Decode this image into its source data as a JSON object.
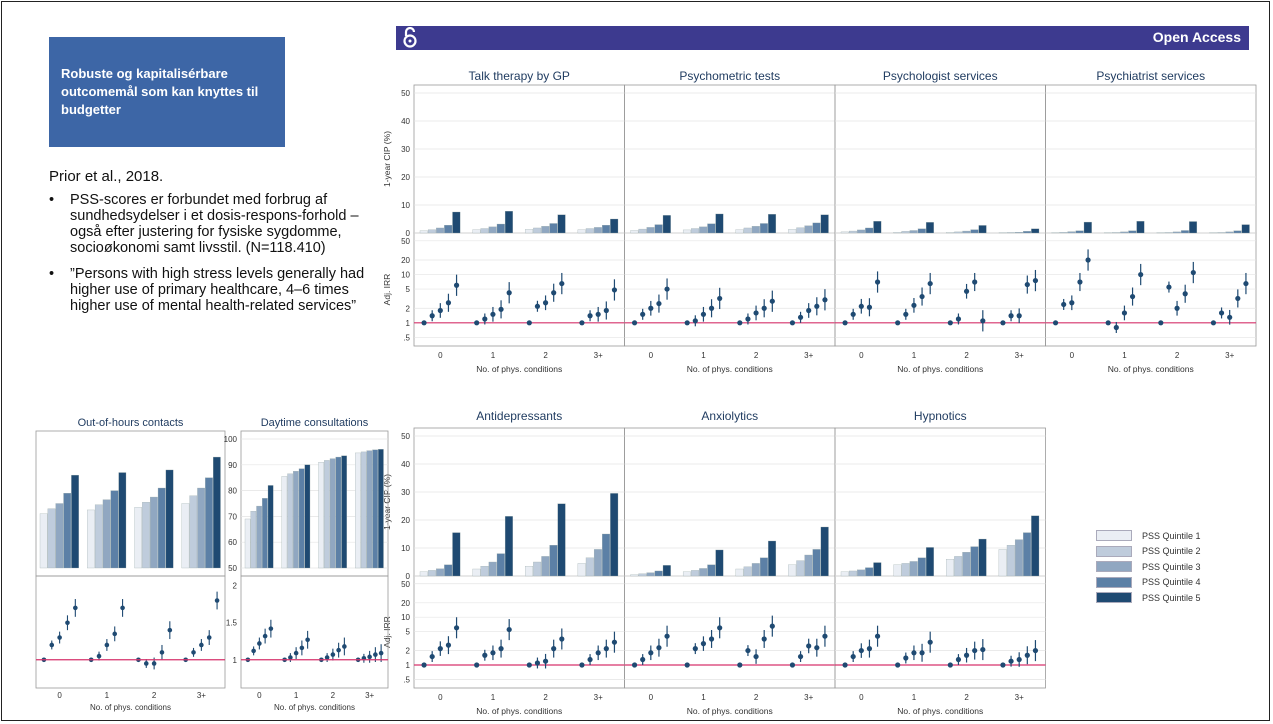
{
  "slide": {
    "callout": "Robuste og kapitalisérbare outcomemål som kan knyttes til budgetter",
    "reference": "Prior et al., 2018.",
    "bullets": [
      "PSS-scores er forbundet med forbrug af sundhedsydelser i et dosis-respons-forhold – også efter justering for fysiske sygdomme, socioøkonomi samt livsstil. (N=118.410)",
      "”Persons with high stress levels generally had higher use of primary healthcare, 4–6 times higher use of mental health-related services”"
    ]
  },
  "banner": {
    "label": "Open Access"
  },
  "legend": {
    "entries": [
      "PSS Quintile 1",
      "PSS Quintile 2",
      "PSS Quintile 3",
      "PSS Quintile 4",
      "PSS Quintile 5"
    ],
    "colors": [
      "#eaeef4",
      "#bfccdc",
      "#90a7c1",
      "#5c80a6",
      "#1f4a72"
    ]
  },
  "chart_data": [
    {
      "type": "bar",
      "group": "mental health services",
      "panels": [
        "Talk therapy by GP",
        "Psychometric tests",
        "Psychologist services",
        "Psychiatrist services"
      ],
      "categories": [
        "0",
        "1",
        "2",
        "3+"
      ],
      "xlabel": "No. of phys. conditions",
      "ylabel": "1-year CIP (%)",
      "ylim": [
        0,
        50
      ],
      "yticks": [
        0,
        10,
        20,
        30,
        40,
        50
      ],
      "values": [
        [
          [
            0.8,
            1.2,
            1.8,
            2.8,
            7.5
          ],
          [
            1.2,
            1.6,
            2.2,
            3.2,
            7.8
          ],
          [
            1.3,
            1.8,
            2.4,
            3.4,
            6.5
          ],
          [
            1.2,
            1.6,
            2.0,
            2.8,
            5.0
          ]
        ],
        [
          [
            0.9,
            1.4,
            2.0,
            3.0,
            6.3
          ],
          [
            1.1,
            1.6,
            2.2,
            3.3,
            6.8
          ],
          [
            1.2,
            1.8,
            2.4,
            3.4,
            6.7
          ],
          [
            1.3,
            1.9,
            2.6,
            3.6,
            6.5
          ]
        ],
        [
          [
            0.4,
            0.7,
            1.1,
            1.8,
            4.2
          ],
          [
            0.3,
            0.6,
            0.9,
            1.5,
            3.8
          ],
          [
            0.2,
            0.4,
            0.7,
            1.2,
            2.7
          ],
          [
            0.1,
            0.2,
            0.3,
            0.6,
            1.5
          ]
        ],
        [
          [
            0.1,
            0.3,
            0.5,
            0.8,
            3.9
          ],
          [
            0.1,
            0.2,
            0.4,
            0.8,
            4.2
          ],
          [
            0.1,
            0.2,
            0.4,
            0.9,
            4.1
          ],
          [
            0.1,
            0.2,
            0.4,
            0.8,
            3.0
          ]
        ]
      ],
      "irr_ylabel": "Adj. IRR",
      "irr_yticks": [
        ".5",
        "1",
        "2",
        "5",
        "10",
        "20",
        "50"
      ],
      "irr_values": [
        [
          [
            1,
            1.4,
            1.8,
            2.6,
            6
          ],
          [
            1,
            1.2,
            1.5,
            1.9,
            4.2
          ],
          [
            1,
            2.2,
            2.6,
            4.2,
            6.5
          ],
          [
            1,
            1.4,
            1.5,
            1.8,
            4.8
          ]
        ],
        [
          [
            1,
            1.5,
            2.0,
            2.5,
            5
          ],
          [
            1,
            1.1,
            1.5,
            2.0,
            3.2
          ],
          [
            1,
            1.2,
            1.6,
            2.0,
            2.8
          ],
          [
            1,
            1.3,
            1.8,
            2.2,
            3
          ]
        ],
        [
          [
            1,
            1.5,
            2.2,
            2.1,
            7
          ],
          [
            1,
            1.5,
            2.3,
            3.5,
            6.5
          ],
          [
            1,
            1.2,
            4.5,
            7,
            1.1
          ],
          [
            1,
            1.4,
            1.4,
            6.2,
            7.5
          ]
        ],
        [
          [
            1,
            2.4,
            2.6,
            7,
            20
          ],
          [
            1,
            0.8,
            1.6,
            3.5,
            10
          ],
          [
            1,
            5.5,
            2.0,
            4,
            11
          ],
          [
            1,
            1.6,
            1.3,
            3.2,
            6.5
          ]
        ]
      ]
    },
    {
      "type": "bar",
      "group": "psychotropic drugs",
      "panels": [
        "Antidepressants",
        "Anxiolytics",
        "Hypnotics"
      ],
      "categories": [
        "0",
        "1",
        "2",
        "3+"
      ],
      "xlabel": "No. of phys. conditions",
      "ylabel": "1-year CIP (%)",
      "ylim": [
        0,
        50
      ],
      "yticks": [
        0,
        10,
        20,
        30,
        40,
        50
      ],
      "values": [
        [
          [
            1.5,
            2.0,
            2.6,
            4.0,
            15.5
          ],
          [
            2.5,
            3.5,
            5.0,
            8.0,
            21.3
          ],
          [
            3.5,
            5.0,
            7.0,
            11.0,
            25.8
          ],
          [
            4.5,
            6.5,
            9.5,
            15.0,
            29.5
          ]
        ],
        [
          [
            0.5,
            0.8,
            1.2,
            1.8,
            3.8
          ],
          [
            1.5,
            2.0,
            2.7,
            4.0,
            9.3
          ],
          [
            2.5,
            3.3,
            4.5,
            6.5,
            12.5
          ],
          [
            4.0,
            5.5,
            7.5,
            9.5,
            17.5
          ]
        ],
        [
          [
            1.5,
            1.8,
            2.2,
            3.0,
            4.8
          ],
          [
            4.0,
            4.5,
            5.2,
            6.5,
            10.2
          ],
          [
            6.0,
            7.0,
            8.5,
            10.5,
            13.2
          ],
          [
            9.5,
            11.0,
            13.0,
            15.5,
            21.5
          ]
        ]
      ],
      "irr_ylabel": "Adj. IRR",
      "irr_yticks": [
        ".5",
        "1",
        "2",
        "5",
        "10",
        "20",
        "50"
      ],
      "irr_values": [
        [
          [
            1,
            1.5,
            2.2,
            2.6,
            6
          ],
          [
            1,
            1.6,
            1.8,
            2.2,
            5.5
          ],
          [
            1,
            1.1,
            1.2,
            2.2,
            3.5
          ],
          [
            1,
            1.3,
            1.8,
            2.2,
            3
          ]
        ],
        [
          [
            1,
            1.3,
            1.8,
            2.3,
            4
          ],
          [
            1,
            2.2,
            2.8,
            3.5,
            6
          ],
          [
            1,
            2.0,
            1.5,
            3.5,
            6.5
          ],
          [
            1,
            1.5,
            2.5,
            2.3,
            4
          ]
        ],
        [
          [
            1,
            1.5,
            2.0,
            2.2,
            4
          ],
          [
            1,
            1.4,
            1.8,
            1.8,
            3
          ],
          [
            1,
            1.3,
            1.6,
            2.0,
            2.1
          ],
          [
            1,
            1.2,
            1.3,
            1.6,
            2
          ]
        ]
      ]
    },
    {
      "type": "bar",
      "group": "primary care contacts",
      "panels": [
        "Out-of-hours contacts",
        "Daytime consultations"
      ],
      "categories": [
        "0",
        "1",
        "2",
        "3+"
      ],
      "xlabel": "No. of phys. conditions",
      "ylims": [
        [
          null,
          null
        ],
        [
          50,
          100
        ]
      ],
      "yticks": [
        [],
        [
          50,
          60,
          70,
          80,
          90,
          100
        ]
      ],
      "values": [
        [
          [
            0.42,
            0.46,
            0.5,
            0.58,
            0.72
          ],
          [
            0.45,
            0.49,
            0.53,
            0.6,
            0.74
          ],
          [
            0.47,
            0.51,
            0.55,
            0.62,
            0.76
          ],
          [
            0.5,
            0.56,
            0.62,
            0.7,
            0.86
          ]
        ],
        [
          [
            69,
            72,
            74,
            77,
            82
          ],
          [
            85.5,
            86.5,
            87.5,
            88.5,
            90
          ],
          [
            91,
            91.7,
            92.4,
            93,
            93.5
          ],
          [
            94.6,
            95,
            95.5,
            95.8,
            96
          ]
        ]
      ],
      "irr_yticks": [
        [],
        [
          "1",
          "1.5",
          "2"
        ]
      ],
      "irr_values": [
        [
          [
            1,
            1.2,
            1.3,
            1.5,
            1.7
          ],
          [
            1,
            1.05,
            1.2,
            1.35,
            1.7
          ],
          [
            1,
            0.95,
            0.95,
            1.1,
            1.4
          ],
          [
            1,
            1.1,
            1.2,
            1.3,
            1.8
          ]
        ],
        [
          [
            1,
            1.12,
            1.22,
            1.32,
            1.42
          ],
          [
            1,
            1.03,
            1.09,
            1.16,
            1.27
          ],
          [
            1,
            1.03,
            1.07,
            1.13,
            1.18
          ],
          [
            1,
            1.02,
            1.04,
            1.07,
            1.09
          ]
        ]
      ]
    }
  ]
}
